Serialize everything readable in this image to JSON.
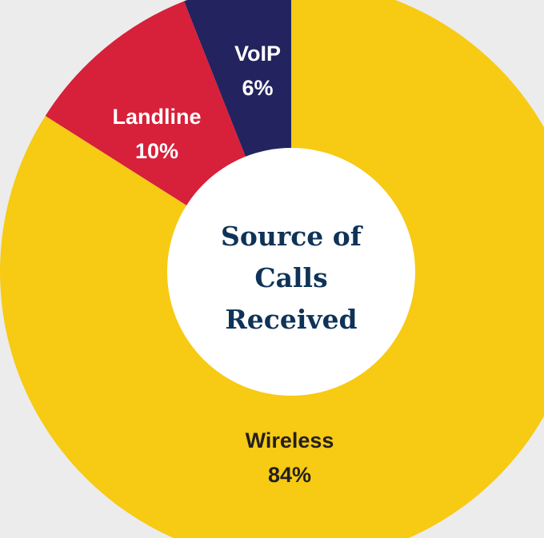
{
  "chart_data": {
    "type": "pie",
    "style": "donut",
    "center_title": [
      "Source of",
      "Calls",
      "Received"
    ],
    "slices": [
      {
        "label": "VoIP",
        "value": 6,
        "value_label": "6%",
        "color": "#232360",
        "text_color": "#ffffff"
      },
      {
        "label": "Landline",
        "value": 10,
        "value_label": "10%",
        "color": "#d7203a",
        "text_color": "#ffffff"
      },
      {
        "label": "Wireless",
        "value": 84,
        "value_label": "84%",
        "color": "#f7ca14",
        "text_color": "#231f20"
      }
    ],
    "center_color": "#ffffff",
    "title_color": "#0f3358",
    "background": "#ececec"
  }
}
